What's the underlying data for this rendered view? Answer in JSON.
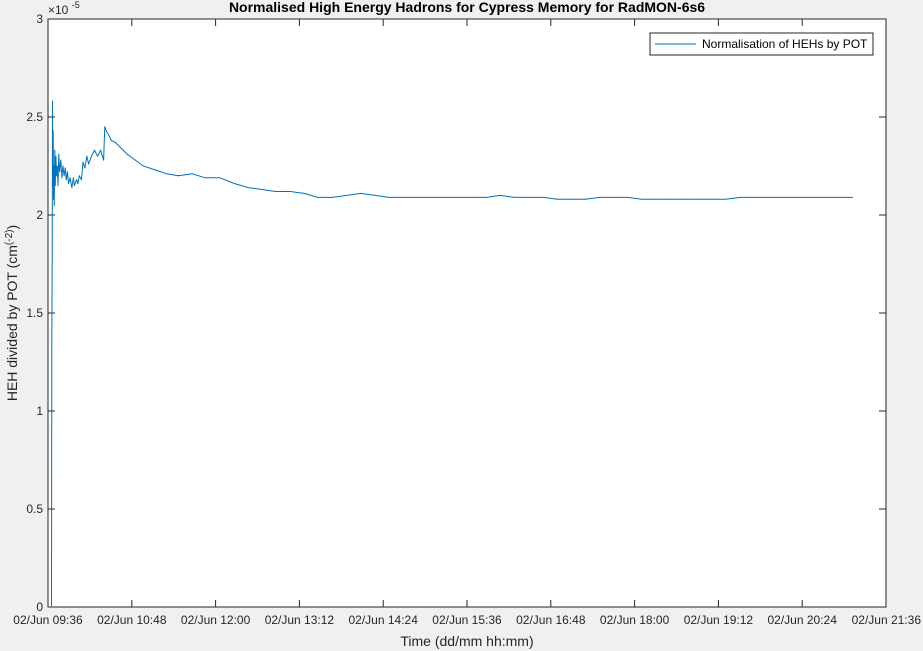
{
  "chart_data": {
    "type": "line",
    "title": "Normalised High Energy Hadrons for Cypress Memory for RadMON-6s6",
    "xlabel": "Time (dd/mm hh:mm)",
    "ylabel_prefix": "HEH divided by POT (cm",
    "ylabel_sup": "(-2)",
    "ylabel_suffix": ")",
    "y_exponent_base": "×10",
    "y_exponent_power": "-5",
    "y_exponent": -5,
    "ylim": [
      0,
      3
    ],
    "xlim_minutes": [
      0,
      720
    ],
    "yticks": [
      {
        "value": 0,
        "label": "0"
      },
      {
        "value": 0.5,
        "label": "0.5"
      },
      {
        "value": 1,
        "label": "1"
      },
      {
        "value": 1.5,
        "label": "1.5"
      },
      {
        "value": 2,
        "label": "2"
      },
      {
        "value": 2.5,
        "label": "2.5"
      },
      {
        "value": 3,
        "label": "3"
      }
    ],
    "xticks": [
      {
        "value": 0,
        "label": "02/Jun 09:36"
      },
      {
        "value": 72,
        "label": "02/Jun 10:48"
      },
      {
        "value": 144,
        "label": "02/Jun 12:00"
      },
      {
        "value": 216,
        "label": "02/Jun 13:12"
      },
      {
        "value": 288,
        "label": "02/Jun 14:24"
      },
      {
        "value": 360,
        "label": "02/Jun 15:36"
      },
      {
        "value": 432,
        "label": "02/Jun 16:48"
      },
      {
        "value": 504,
        "label": "02/Jun 18:00"
      },
      {
        "value": 576,
        "label": "02/Jun 19:12"
      },
      {
        "value": 648,
        "label": "02/Jun 20:24"
      },
      {
        "value": 720,
        "label": "02/Jun 21:36"
      }
    ],
    "grid": false,
    "legend_position": "top-right",
    "series": [
      {
        "name": "Normalisation of HEHs by POT",
        "color": "#0072bd",
        "x_times": [
          "02/Jun 09:39",
          "02/Jun 09:39",
          "02/Jun 09:40",
          "02/Jun 09:40",
          "02/Jun 09:40",
          "02/Jun 09:41",
          "02/Jun 09:41",
          "02/Jun 09:41",
          "02/Jun 09:41",
          "02/Jun 09:42",
          "02/Jun 09:42",
          "02/Jun 09:43",
          "02/Jun 09:43",
          "02/Jun 09:44",
          "02/Jun 09:45",
          "02/Jun 09:45",
          "02/Jun 09:46",
          "02/Jun 09:47",
          "02/Jun 09:48",
          "02/Jun 09:49",
          "02/Jun 09:50",
          "02/Jun 09:51",
          "02/Jun 09:52",
          "02/Jun 09:53",
          "02/Jun 09:54",
          "02/Jun 09:55",
          "02/Jun 09:57",
          "02/Jun 09:58",
          "02/Jun 09:59",
          "02/Jun 10:01",
          "02/Jun 10:02",
          "02/Jun 10:03",
          "02/Jun 10:05",
          "02/Jun 10:06",
          "02/Jun 10:08",
          "02/Jun 10:09",
          "02/Jun 10:11",
          "02/Jun 10:12",
          "02/Jun 10:14",
          "02/Jun 10:16",
          "02/Jun 10:19",
          "02/Jun 10:21",
          "02/Jun 10:24",
          "02/Jun 10:25",
          "02/Jun 10:26",
          "02/Jun 10:28",
          "02/Jun 10:30",
          "02/Jun 10:34",
          "02/Jun 10:39",
          "02/Jun 10:44",
          "02/Jun 10:51",
          "02/Jun 10:58",
          "02/Jun 11:08",
          "02/Jun 11:18",
          "02/Jun 11:28",
          "02/Jun 11:40",
          "02/Jun 11:51",
          "02/Jun 12:04",
          "02/Jun 12:16",
          "02/Jun 12:28",
          "02/Jun 12:40",
          "02/Jun 12:52",
          "02/Jun 13:04",
          "02/Jun 13:16",
          "02/Jun 13:28",
          "02/Jun 13:40",
          "02/Jun 13:53",
          "02/Jun 14:05",
          "02/Jun 14:17",
          "02/Jun 14:29",
          "02/Jun 14:41",
          "02/Jun 14:53",
          "02/Jun 15:05",
          "02/Jun 15:17",
          "02/Jun 15:29",
          "02/Jun 15:41",
          "02/Jun 15:53",
          "02/Jun 16:05",
          "02/Jun 16:17",
          "02/Jun 16:29",
          "02/Jun 16:42",
          "02/Jun 16:54",
          "02/Jun 17:06",
          "02/Jun 17:18",
          "02/Jun 17:30",
          "02/Jun 17:42",
          "02/Jun 17:54",
          "02/Jun 18:06",
          "02/Jun 18:18",
          "02/Jun 18:30",
          "02/Jun 18:42",
          "02/Jun 18:54",
          "02/Jun 19:06",
          "02/Jun 19:18",
          "02/Jun 19:31",
          "02/Jun 19:43",
          "02/Jun 19:55",
          "02/Jun 20:07",
          "02/Jun 20:19",
          "02/Jun 20:31",
          "02/Jun 20:43",
          "02/Jun 20:55",
          "02/Jun 21:07"
        ],
        "x": [
          3.0,
          3.3,
          3.6,
          3.9,
          4.2,
          4.5,
          4.7,
          5.0,
          5.3,
          5.8,
          6.3,
          6.8,
          7.3,
          8.0,
          8.6,
          9.3,
          10.0,
          11.0,
          11.9,
          12.9,
          13.8,
          14.8,
          15.7,
          16.7,
          17.6,
          18.9,
          20.5,
          21.8,
          22.7,
          24.6,
          25.6,
          26.9,
          28.8,
          30.1,
          31.7,
          33.3,
          34.9,
          36.2,
          38.1,
          40.0,
          42.6,
          45.2,
          47.8,
          48.8,
          50.0,
          52.0,
          54.4,
          58.0,
          63.0,
          68.0,
          75.0,
          82.0,
          92.0,
          102.0,
          112.0,
          124.0,
          135.0,
          147.7,
          160.4,
          172.1,
          183.8,
          195.5,
          208.2,
          220.0,
          231.7,
          244.4,
          256.8,
          268.8,
          281.3,
          293.0,
          305.2,
          316.7,
          328.5,
          340.8,
          353.0,
          364.7,
          376.7,
          388.7,
          400.9,
          412.9,
          425.8,
          437.7,
          449.5,
          461.8,
          474.0,
          486.2,
          498.2,
          510.4,
          521.9,
          534.0,
          546.1,
          558.3,
          570.5,
          582.1,
          594.7,
          606.8,
          618.9,
          630.8,
          643.0,
          654.6,
          666.9,
          678.6,
          691.3
        ],
        "y": [
          0.0,
          1.33,
          1.8,
          2.58,
          2.15,
          2.43,
          2.08,
          2.25,
          2.05,
          2.33,
          2.15,
          2.3,
          2.2,
          2.25,
          2.15,
          2.31,
          2.22,
          2.28,
          2.19,
          2.25,
          2.2,
          2.24,
          2.18,
          2.22,
          2.16,
          2.19,
          2.14,
          2.19,
          2.15,
          2.18,
          2.16,
          2.2,
          2.18,
          2.27,
          2.24,
          2.3,
          2.26,
          2.28,
          2.31,
          2.33,
          2.3,
          2.33,
          2.28,
          2.45,
          2.43,
          2.41,
          2.38,
          2.37,
          2.34,
          2.31,
          2.28,
          2.25,
          2.23,
          2.21,
          2.2,
          2.21,
          2.19,
          2.19,
          2.16,
          2.14,
          2.13,
          2.12,
          2.12,
          2.11,
          2.09,
          2.09,
          2.1,
          2.11,
          2.1,
          2.09,
          2.09,
          2.09,
          2.09,
          2.09,
          2.09,
          2.09,
          2.09,
          2.1,
          2.09,
          2.09,
          2.09,
          2.08,
          2.08,
          2.08,
          2.09,
          2.09,
          2.09,
          2.08,
          2.08,
          2.08,
          2.08,
          2.08,
          2.08,
          2.08,
          2.09,
          2.09,
          2.09,
          2.09,
          2.09,
          2.09,
          2.09,
          2.09,
          2.09
        ]
      }
    ]
  }
}
